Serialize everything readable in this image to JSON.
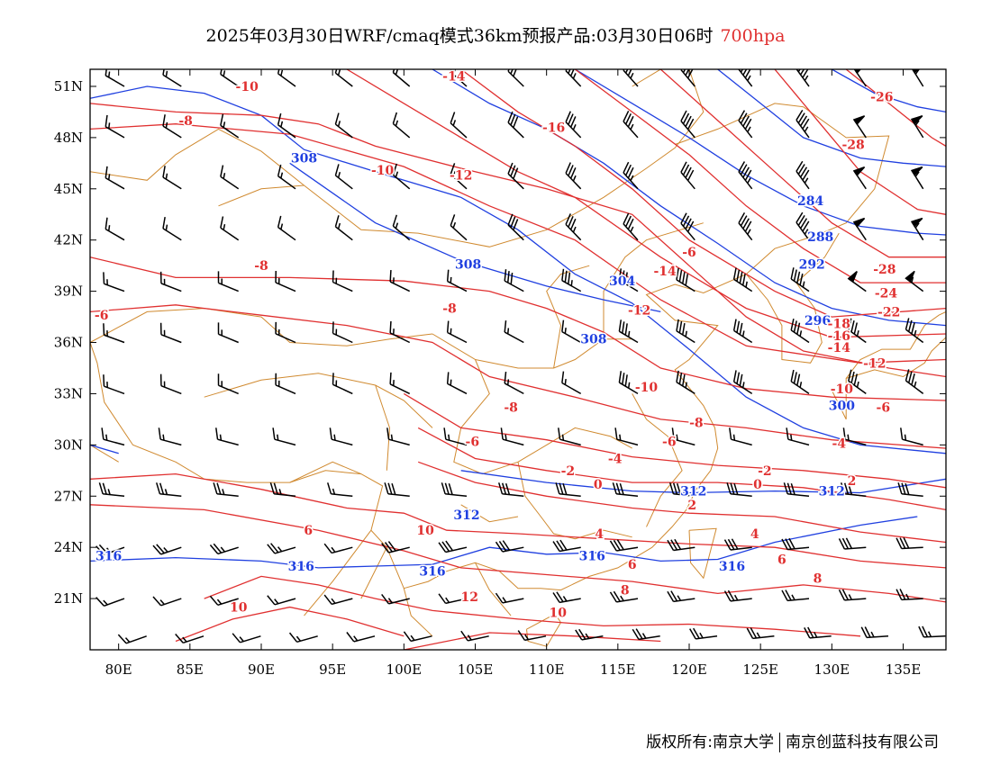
{
  "title": {
    "main": "2025年03月30日WRF/cmaq模式36km预报产品:03月30日06时",
    "level": "700hpa",
    "level_color": "#e03030"
  },
  "footer": {
    "left": "版权所有:南京大学",
    "right": "南京创蓝科技有限公司"
  },
  "map": {
    "lon_range": [
      78,
      138
    ],
    "lat_range": [
      18,
      52
    ],
    "lon_ticks": [
      "80E",
      "85E",
      "90E",
      "95E",
      "100E",
      "105E",
      "110E",
      "115E",
      "120E",
      "125E",
      "130E",
      "135E"
    ],
    "lat_ticks": [
      "51N",
      "48N",
      "45N",
      "42N",
      "39N",
      "36N",
      "33N",
      "30N",
      "27N",
      "24N",
      "21N"
    ],
    "colors": {
      "temperature": "#e03030",
      "geopotential": "#2040e0",
      "borders": "#d08a30",
      "barbs": "#000000"
    }
  },
  "temperature_labels": [
    {
      "text": "-14",
      "lon": 103.5,
      "lat": 51.6
    },
    {
      "text": "-10",
      "lon": 89.0,
      "lat": 51.0
    },
    {
      "text": "-8",
      "lon": 84.7,
      "lat": 49.0
    },
    {
      "text": "-16",
      "lon": 110.5,
      "lat": 48.6
    },
    {
      "text": "-10",
      "lon": 98.5,
      "lat": 46.1
    },
    {
      "text": "-12",
      "lon": 104.0,
      "lat": 45.8
    },
    {
      "text": "-26",
      "lon": 133.5,
      "lat": 50.4
    },
    {
      "text": "-28",
      "lon": 131.5,
      "lat": 47.6
    },
    {
      "text": "-6",
      "lon": 120.0,
      "lat": 41.3
    },
    {
      "text": "-8",
      "lon": 90.0,
      "lat": 40.5
    },
    {
      "text": "-14",
      "lon": 118.3,
      "lat": 40.2
    },
    {
      "text": "-28",
      "lon": 133.7,
      "lat": 40.3
    },
    {
      "text": "-24",
      "lon": 133.8,
      "lat": 38.9
    },
    {
      "text": "-22",
      "lon": 134.0,
      "lat": 37.8
    },
    {
      "text": "-6",
      "lon": 78.8,
      "lat": 37.6
    },
    {
      "text": "-8",
      "lon": 103.2,
      "lat": 38.0
    },
    {
      "text": "-12",
      "lon": 116.5,
      "lat": 37.9
    },
    {
      "text": "-18",
      "lon": 130.5,
      "lat": 37.1
    },
    {
      "text": "-16",
      "lon": 130.5,
      "lat": 36.4
    },
    {
      "text": "-14",
      "lon": 130.5,
      "lat": 35.7
    },
    {
      "text": "-12",
      "lon": 133.0,
      "lat": 34.8
    },
    {
      "text": "-10",
      "lon": 130.7,
      "lat": 33.3
    },
    {
      "text": "-10",
      "lon": 117.0,
      "lat": 33.4
    },
    {
      "text": "-8",
      "lon": 107.5,
      "lat": 32.2
    },
    {
      "text": "-6",
      "lon": 133.6,
      "lat": 32.2
    },
    {
      "text": "-8",
      "lon": 120.5,
      "lat": 31.3
    },
    {
      "text": "-6",
      "lon": 118.6,
      "lat": 30.2
    },
    {
      "text": "-4",
      "lon": 130.5,
      "lat": 30.1
    },
    {
      "text": "-6",
      "lon": 104.8,
      "lat": 30.2
    },
    {
      "text": "-4",
      "lon": 114.8,
      "lat": 29.2
    },
    {
      "text": "-2",
      "lon": 111.5,
      "lat": 28.5
    },
    {
      "text": "-2",
      "lon": 125.3,
      "lat": 28.5
    },
    {
      "text": "0",
      "lon": 113.6,
      "lat": 27.7
    },
    {
      "text": "0",
      "lon": 124.8,
      "lat": 27.7
    },
    {
      "text": "2",
      "lon": 131.4,
      "lat": 27.9
    },
    {
      "text": "2",
      "lon": 120.2,
      "lat": 26.5
    },
    {
      "text": "4",
      "lon": 113.7,
      "lat": 24.8
    },
    {
      "text": "4",
      "lon": 124.6,
      "lat": 24.8
    },
    {
      "text": "6",
      "lon": 93.3,
      "lat": 25.0
    },
    {
      "text": "6",
      "lon": 116.0,
      "lat": 23.0
    },
    {
      "text": "6",
      "lon": 126.5,
      "lat": 23.3
    },
    {
      "text": "8",
      "lon": 129.0,
      "lat": 22.2
    },
    {
      "text": "8",
      "lon": 115.5,
      "lat": 21.5
    },
    {
      "text": "10",
      "lon": 101.5,
      "lat": 25.0
    },
    {
      "text": "12",
      "lon": 104.6,
      "lat": 21.1
    },
    {
      "text": "10",
      "lon": 88.4,
      "lat": 20.5
    },
    {
      "text": "10",
      "lon": 110.8,
      "lat": 20.2
    }
  ],
  "geopotential_labels": [
    {
      "text": "308",
      "lon": 93.0,
      "lat": 46.8
    },
    {
      "text": "308",
      "lon": 104.5,
      "lat": 40.6
    },
    {
      "text": "304",
      "lon": 115.3,
      "lat": 39.6
    },
    {
      "text": "308",
      "lon": 113.3,
      "lat": 36.2
    },
    {
      "text": "284",
      "lon": 128.5,
      "lat": 44.3
    },
    {
      "text": "288",
      "lon": 129.2,
      "lat": 42.2
    },
    {
      "text": "292",
      "lon": 128.6,
      "lat": 40.6
    },
    {
      "text": "296",
      "lon": 129.0,
      "lat": 37.3
    },
    {
      "text": "300",
      "lon": 130.7,
      "lat": 32.3
    },
    {
      "text": "312",
      "lon": 120.3,
      "lat": 27.3
    },
    {
      "text": "312",
      "lon": 130.0,
      "lat": 27.3
    },
    {
      "text": "312",
      "lon": 104.4,
      "lat": 25.9
    },
    {
      "text": "316",
      "lon": 79.3,
      "lat": 23.5
    },
    {
      "text": "316",
      "lon": 92.8,
      "lat": 22.9
    },
    {
      "text": "316",
      "lon": 102.0,
      "lat": 22.6
    },
    {
      "text": "316",
      "lon": 113.2,
      "lat": 23.5
    },
    {
      "text": "316",
      "lon": 123.0,
      "lat": 22.9
    }
  ]
}
